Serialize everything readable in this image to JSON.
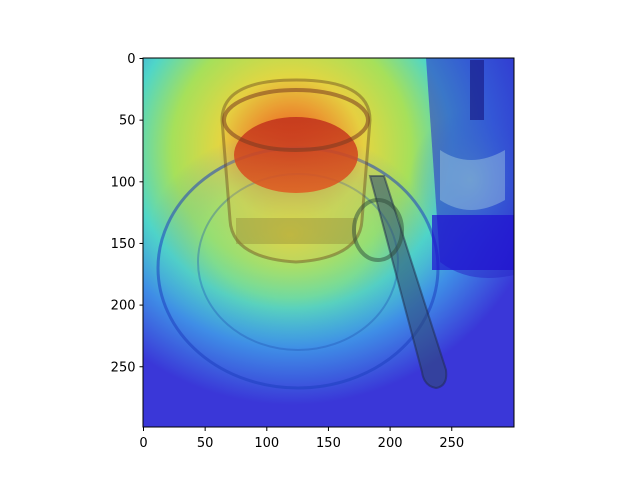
{
  "image": {
    "description_colormap": "jet",
    "subject_icons": [
      "glass-cup-icon",
      "saucer-icon",
      "spoon-icon",
      "drink-glass-icon"
    ]
  },
  "axes": {
    "x": {
      "ticks": [
        "0",
        "50",
        "100",
        "150",
        "200",
        "250"
      ],
      "range": [
        0,
        300
      ]
    },
    "y": {
      "ticks": [
        "0",
        "50",
        "100",
        "150",
        "200",
        "250"
      ],
      "range": [
        0,
        300
      ]
    }
  },
  "colors": {
    "background_low": "#3a37d8",
    "mid": "#41d7d6",
    "high_yellow": "#dfe04a",
    "hot": "#e0261c"
  }
}
